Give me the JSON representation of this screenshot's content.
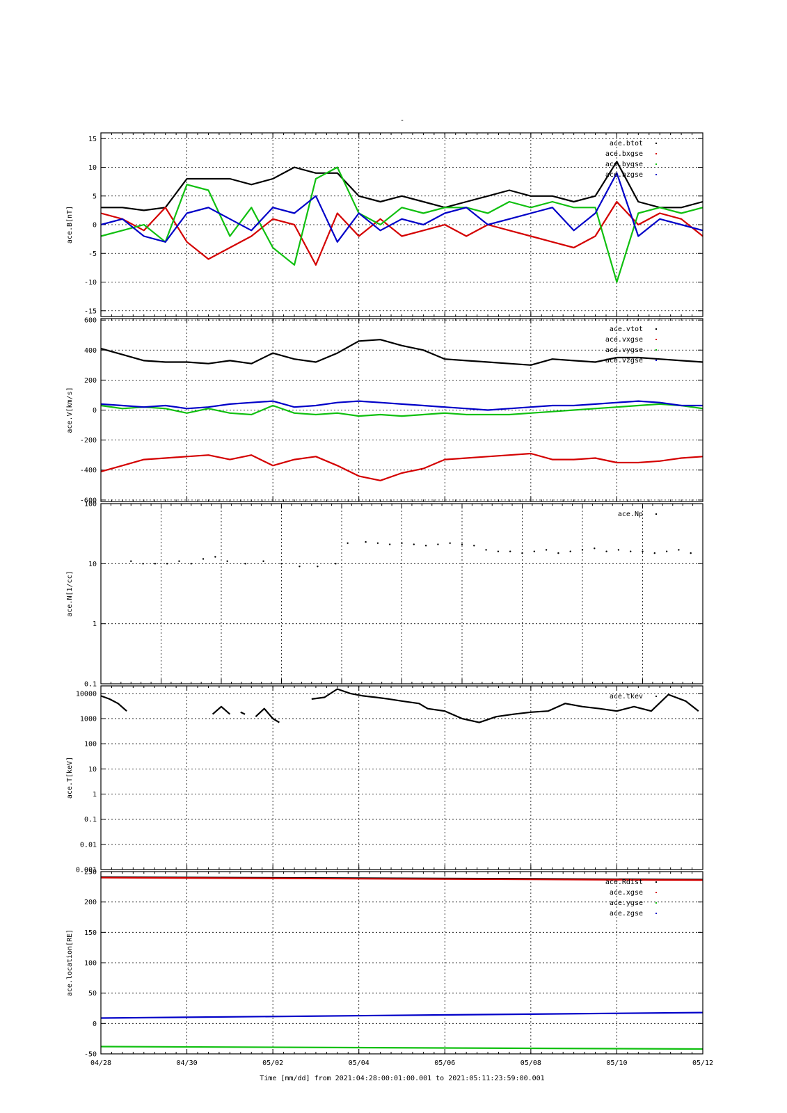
{
  "title": "-",
  "xaxis": {
    "label": "Time [mm/dd]  from 2021:04:28:00:01:00.001  to  2021:05:11:23:59:00.001",
    "ticks": [
      "04/28",
      "04/30",
      "05/02",
      "05/04",
      "05/06",
      "05/08",
      "05/10",
      "05/12"
    ]
  },
  "colors": {
    "black": "#000000",
    "red": "#d40000",
    "green": "#10c010",
    "blue": "#0000c8"
  },
  "chart_data": [
    {
      "type": "line",
      "ylabel": "ace.B[nT]",
      "ylim": [
        -16,
        16
      ],
      "yticks": [
        15,
        10,
        5,
        0,
        -5,
        -10,
        -15
      ],
      "ytick_labels": [
        "15",
        "10",
        "5",
        "0",
        "-5",
        "-10",
        "-15"
      ],
      "legend_position": "top-right",
      "x_days": [
        0,
        0.5,
        1,
        1.5,
        2,
        2.5,
        3,
        3.5,
        4,
        4.5,
        5,
        5.5,
        6,
        6.5,
        7,
        7.5,
        8,
        8.5,
        9,
        9.5,
        10,
        10.5,
        11,
        11.5,
        12,
        12.5,
        13,
        13.5,
        14
      ],
      "series": [
        {
          "name": "ace.btot",
          "color": "black",
          "values": [
            3,
            3,
            2.5,
            3,
            8,
            8,
            8,
            7,
            8,
            10,
            9,
            9,
            5,
            4,
            5,
            4,
            3,
            4,
            5,
            6,
            5,
            5,
            4,
            5,
            11,
            4,
            3,
            3,
            4
          ]
        },
        {
          "name": "ace.bxgse",
          "color": "red",
          "values": [
            2,
            1,
            -1,
            3,
            -3,
            -6,
            -4,
            -2,
            1,
            0,
            -7,
            2,
            -2,
            1,
            -2,
            -1,
            0,
            -2,
            0,
            -1,
            -2,
            -3,
            -4,
            -2,
            4,
            0,
            2,
            1,
            -2
          ]
        },
        {
          "name": "ace.bygse",
          "color": "green",
          "values": [
            -2,
            -1,
            0,
            -3,
            7,
            6,
            -2,
            3,
            -4,
            -7,
            8,
            10,
            2,
            0,
            3,
            2,
            3,
            3,
            2,
            4,
            3,
            4,
            3,
            3,
            -10,
            2,
            3,
            2,
            3
          ]
        },
        {
          "name": "ace.bzgse",
          "color": "blue",
          "values": [
            0,
            1,
            -2,
            -3,
            2,
            3,
            1,
            -1,
            3,
            2,
            5,
            -3,
            2,
            -1,
            1,
            0,
            2,
            3,
            0,
            1,
            2,
            3,
            -1,
            2,
            9,
            -2,
            1,
            0,
            -1
          ]
        }
      ]
    },
    {
      "type": "line",
      "ylabel": "ace.V[km/s]",
      "ylim": [
        -610,
        610
      ],
      "yticks": [
        600,
        400,
        200,
        0,
        -200,
        -400,
        -600
      ],
      "ytick_labels": [
        "600",
        "400",
        "200",
        "0",
        "-200",
        "-400",
        "-600"
      ],
      "legend_position": "top-right",
      "x_days": [
        0,
        0.5,
        1,
        1.5,
        2,
        2.5,
        3,
        3.5,
        4,
        4.5,
        5,
        5.5,
        6,
        6.5,
        7,
        7.5,
        8,
        8.5,
        9,
        9.5,
        10,
        10.5,
        11,
        11.5,
        12,
        12.5,
        13,
        13.5,
        14
      ],
      "series": [
        {
          "name": "ace.vtot",
          "color": "black",
          "values": [
            410,
            370,
            330,
            320,
            320,
            310,
            330,
            310,
            380,
            340,
            320,
            380,
            460,
            470,
            430,
            400,
            340,
            330,
            320,
            310,
            300,
            340,
            330,
            320,
            350,
            350,
            340,
            330,
            320
          ]
        },
        {
          "name": "ace.vxgse",
          "color": "red",
          "values": [
            -410,
            -370,
            -330,
            -320,
            -310,
            -300,
            -330,
            -300,
            -370,
            -330,
            -310,
            -370,
            -440,
            -470,
            -420,
            -390,
            -330,
            -320,
            -310,
            -300,
            -290,
            -330,
            -330,
            -320,
            -350,
            -350,
            -340,
            -320,
            -310
          ]
        },
        {
          "name": "ace.vygse",
          "color": "green",
          "values": [
            30,
            10,
            20,
            10,
            -20,
            10,
            -20,
            -30,
            30,
            -20,
            -30,
            -20,
            -40,
            -30,
            -40,
            -30,
            -20,
            -30,
            -30,
            -30,
            -20,
            -10,
            0,
            10,
            20,
            30,
            40,
            30,
            10
          ]
        },
        {
          "name": "ace.vzgse",
          "color": "blue",
          "values": [
            40,
            30,
            20,
            30,
            10,
            20,
            40,
            50,
            60,
            20,
            30,
            50,
            60,
            50,
            40,
            30,
            20,
            10,
            0,
            10,
            20,
            30,
            30,
            40,
            50,
            60,
            50,
            30,
            30
          ]
        }
      ]
    },
    {
      "type": "scatter",
      "ylabel": "ace.N[1/cc]",
      "ylim": [
        0.1,
        100
      ],
      "log_scale": true,
      "yticks": [
        100,
        10,
        1,
        0.1
      ],
      "ytick_labels": [
        "100",
        "10",
        "1",
        "0.1"
      ],
      "legend_position": "top-right",
      "xticks_days": [
        0,
        1,
        2,
        3,
        4,
        5,
        6,
        7,
        8,
        9,
        10
      ],
      "x_days": [
        0.5,
        0.7,
        0.9,
        1.1,
        1.3,
        1.5,
        1.7,
        1.9,
        2.1,
        2.4,
        2.7,
        3.0,
        3.3,
        3.6,
        3.9,
        4.1,
        4.4,
        4.6,
        4.8,
        5.0,
        5.2,
        5.4,
        5.6,
        5.8,
        6.0,
        6.2,
        6.4,
        6.6,
        6.8,
        7.0,
        7.2,
        7.4,
        7.6,
        7.8,
        8.0,
        8.2,
        8.4,
        8.6,
        8.8,
        9.0,
        9.2,
        9.4,
        9.6,
        9.8
      ],
      "series": [
        {
          "name": "ace.Np",
          "color": "black",
          "values": [
            11,
            10,
            10,
            10,
            11,
            10,
            12,
            13,
            11,
            10,
            11,
            10,
            9,
            9,
            10,
            22,
            23,
            22,
            21,
            22,
            21,
            20,
            21,
            22,
            21,
            20,
            17,
            16,
            16,
            15,
            16,
            17,
            15,
            16,
            17,
            18,
            16,
            17,
            16,
            16,
            15,
            16,
            17,
            15
          ]
        }
      ]
    },
    {
      "type": "line",
      "ylabel": "ace.T[keV]",
      "ylim": [
        0.001,
        20000
      ],
      "log_scale": true,
      "yticks": [
        10000,
        1000,
        100,
        10,
        1,
        0.1,
        0.01,
        0.001
      ],
      "ytick_labels": [
        "10000",
        "1000",
        "100",
        "10",
        "1",
        "0.1",
        "0.01",
        "0.001"
      ],
      "legend_position": "top-right",
      "segments": [
        {
          "x_days": [
            0,
            0.2,
            0.4,
            0.6
          ],
          "values": [
            8000,
            6000,
            4000,
            2000
          ]
        },
        {
          "x_days": [
            2.6,
            2.8,
            3.0
          ],
          "values": [
            1500,
            3000,
            1500
          ]
        },
        {
          "x_days": [
            3.25,
            3.35
          ],
          "values": [
            1800,
            1500
          ]
        },
        {
          "x_days": [
            3.6,
            3.8,
            4.0,
            4.15
          ],
          "values": [
            1200,
            2500,
            1000,
            700
          ]
        },
        {
          "x_days": [
            4.9,
            5.2,
            5.5,
            5.8,
            6.1,
            6.4,
            6.7,
            7.0,
            7.4,
            7.6,
            8.0,
            8.4,
            8.8,
            9.2,
            9.6,
            10.0,
            10.4,
            10.8,
            11.2,
            11.6,
            12.0,
            12.4,
            12.8,
            13.2,
            13.6,
            13.9
          ],
          "values": [
            6000,
            7000,
            15000,
            10000,
            8000,
            7000,
            6000,
            5000,
            4000,
            2500,
            2000,
            1000,
            700,
            1200,
            1500,
            1800,
            2000,
            4000,
            3000,
            2500,
            2000,
            3000,
            2000,
            9000,
            5000,
            2000
          ]
        }
      ],
      "series": [
        {
          "name": "ace.tkev",
          "color": "black"
        }
      ]
    },
    {
      "type": "line",
      "ylabel": "ace.location[RE]",
      "ylim": [
        -50,
        250
      ],
      "yticks": [
        250,
        200,
        150,
        100,
        50,
        0,
        -50
      ],
      "ytick_labels": [
        "250",
        "200",
        "150",
        "100",
        "50",
        "0",
        "-50"
      ],
      "legend_position": "top-right",
      "x_days": [
        0,
        14
      ],
      "series": [
        {
          "name": "ace.Rdist",
          "color": "black",
          "values": [
            241,
            237
          ]
        },
        {
          "name": "ace.xgse",
          "color": "red",
          "values": [
            240,
            236
          ]
        },
        {
          "name": "ace.ygse",
          "color": "green",
          "values": [
            -38,
            -42
          ]
        },
        {
          "name": "ace.zgse",
          "color": "blue",
          "values": [
            9,
            18
          ]
        }
      ]
    }
  ]
}
